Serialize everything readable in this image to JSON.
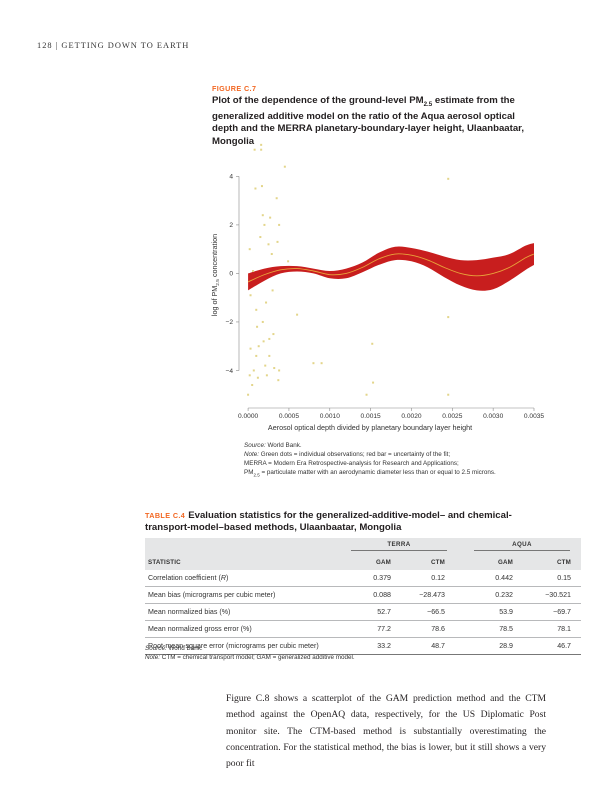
{
  "running_head": "128  |  GETTING DOWN TO EARTH",
  "figure": {
    "label": "FIGURE C.7",
    "title_part1": "Plot of the dependence of the ground-level PM",
    "title_sub": "2.5",
    "title_part2": " estimate from the generalized additive model on the ratio of the Aqua aerosol optical depth and the MERRA planetary-boundary-layer height, Ulaanbaatar, Mongolia",
    "source_label": "Source:",
    "source_text": " World Bank.",
    "note_label": "Note:",
    "note_line1": " Green dots = individual observations; red bar = uncertainty of the fit;",
    "note_line2": "MERRA = Modern Era Retrospective-analysis for Research and Applications;",
    "note_line3_pre": "PM",
    "note_line3_sub": "2.5",
    "note_line3_post": " = particulate matter with an aerodynamic diameter less than or equal to 2.5 microns."
  },
  "chart_data": {
    "type": "scatter",
    "xlabel": "Aerosol optical depth divided by planetary boundary layer height",
    "ylabel_pre": "log of PM",
    "ylabel_sub": "2.5",
    "ylabel_post": " concentration",
    "xlim": [
      -5e-05,
      0.0035
    ],
    "ylim": [
      -5.3,
      5.5
    ],
    "x_ticks": [
      0.0,
      0.0005,
      0.001,
      0.0015,
      0.002,
      0.0025,
      0.003,
      0.0035
    ],
    "x_tick_labels": [
      "0.0000",
      "0.0005",
      "0.0010",
      "0.0015",
      "0.0020",
      "0.0025",
      "0.0030",
      "0.0035"
    ],
    "y_ticks": [
      -4,
      -2,
      0,
      2,
      4
    ],
    "y_tick_labels": [
      "−4",
      "−2",
      "0",
      "2",
      "4"
    ],
    "grid": false,
    "colors": {
      "points": "#e3d58a",
      "band": "#c81e1e",
      "fit": "#e8a33a",
      "axis": "#888888"
    },
    "series": [
      {
        "type": "scatter",
        "points": [
          [
            0.0,
            -5.0
          ],
          [
            2e-05,
            -4.2
          ],
          [
            2e-05,
            1.0
          ],
          [
            3e-05,
            -3.1
          ],
          [
            3e-05,
            -0.9
          ],
          [
            5e-05,
            -4.6
          ],
          [
            6e-05,
            0.1
          ],
          [
            7e-05,
            -4.0
          ],
          [
            8e-05,
            5.1
          ],
          [
            9e-05,
            3.5
          ],
          [
            0.0001,
            -1.5
          ],
          [
            0.0001,
            -3.4
          ],
          [
            0.00011,
            -2.2
          ],
          [
            0.00012,
            -4.3
          ],
          [
            0.00013,
            -3.0
          ],
          [
            0.00015,
            1.5
          ],
          [
            0.00016,
            5.3
          ],
          [
            0.00016,
            5.1
          ],
          [
            0.00017,
            3.6
          ],
          [
            0.00018,
            2.4
          ],
          [
            0.00018,
            -2.0
          ],
          [
            0.00019,
            -2.8
          ],
          [
            0.0002,
            2.0
          ],
          [
            0.00021,
            -3.8
          ],
          [
            0.00022,
            -1.2
          ],
          [
            0.00023,
            -4.2
          ],
          [
            0.00025,
            1.2
          ],
          [
            0.00026,
            -3.4
          ],
          [
            0.00026,
            -2.7
          ],
          [
            0.00027,
            2.3
          ],
          [
            0.00029,
            0.8
          ],
          [
            0.0003,
            -0.7
          ],
          [
            0.00031,
            -2.5
          ],
          [
            0.00032,
            -3.9
          ],
          [
            0.00035,
            3.1
          ],
          [
            0.00036,
            1.3
          ],
          [
            0.00037,
            -4.4
          ],
          [
            0.00038,
            2.0
          ],
          [
            0.00038,
            -4.0
          ],
          [
            0.00045,
            4.4
          ],
          [
            0.00049,
            0.5
          ],
          [
            0.0006,
            -1.7
          ],
          [
            0.0008,
            -3.7
          ],
          [
            0.0009,
            -3.7
          ],
          [
            0.00145,
            -5.0
          ],
          [
            0.00152,
            -2.9
          ],
          [
            0.00153,
            -4.5
          ],
          [
            0.00245,
            3.9
          ],
          [
            0.00245,
            -1.8
          ],
          [
            0.00245,
            -5.0
          ]
        ]
      },
      {
        "type": "line",
        "name": "",
        "x": [
          0.0,
          0.0002,
          0.0004,
          0.0006,
          0.0008,
          0.001,
          0.0012,
          0.0014,
          0.0016,
          0.0018,
          0.002,
          0.0022,
          0.0024,
          0.0026,
          0.0028,
          0.003,
          0.0032,
          0.0034,
          0.0035
        ],
        "y": [
          -0.35,
          -0.05,
          0.15,
          0.2,
          0.1,
          -0.05,
          0.0,
          0.25,
          0.6,
          0.8,
          0.75,
          0.55,
          0.25,
          0.0,
          -0.1,
          0.0,
          0.25,
          0.65,
          0.8
        ],
        "lower": [
          -0.7,
          -0.3,
          0.0,
          0.08,
          0.0,
          -0.2,
          -0.2,
          0.05,
          0.35,
          0.55,
          0.5,
          0.25,
          -0.15,
          -0.5,
          -0.7,
          -0.65,
          -0.3,
          0.15,
          0.35
        ],
        "upper": [
          0.0,
          0.2,
          0.3,
          0.3,
          0.2,
          0.1,
          0.2,
          0.45,
          0.85,
          1.1,
          1.05,
          0.9,
          0.7,
          0.55,
          0.55,
          0.65,
          0.8,
          1.15,
          1.25
        ]
      }
    ]
  },
  "table": {
    "label": "TABLE C.4",
    "title": "Evaluation statistics for the generalized-additive-model– and chemical-transport-model–based methods, Ulaanbaatar, Mongolia",
    "group_terra": "TERRA",
    "group_aqua": "AQUA",
    "col_statistic": "STATISTIC",
    "col_gam": "GAM",
    "col_ctm": "CTM",
    "rows": [
      {
        "stat_pre": "Correlation coefficient (",
        "stat_it": "R",
        "stat_post": ")",
        "terra_gam": "0.379",
        "terra_ctm": "0.12",
        "aqua_gam": "0.442",
        "aqua_ctm": "0.15"
      },
      {
        "stat_pre": "Mean bias (micrograms per cubic meter)",
        "stat_it": "",
        "stat_post": "",
        "terra_gam": "0.088",
        "terra_ctm": "−28.473",
        "aqua_gam": "0.232",
        "aqua_ctm": "−30.521"
      },
      {
        "stat_pre": "Mean normalized bias (%)",
        "stat_it": "",
        "stat_post": "",
        "terra_gam": "52.7",
        "terra_ctm": "−66.5",
        "aqua_gam": "53.9",
        "aqua_ctm": "−69.7"
      },
      {
        "stat_pre": "Mean normalized gross error (%)",
        "stat_it": "",
        "stat_post": "",
        "terra_gam": "77.2",
        "terra_ctm": "78.6",
        "aqua_gam": "78.5",
        "aqua_ctm": "78.1"
      },
      {
        "stat_pre": "Root-mean-square error (micrograms per cubic meter)",
        "stat_it": "",
        "stat_post": "",
        "terra_gam": "33.2",
        "terra_ctm": "48.7",
        "aqua_gam": "28.9",
        "aqua_ctm": "46.7"
      }
    ],
    "source_label": "Source:",
    "source_text": " World Bank.",
    "note_label": "Note:",
    "note_text": " CTM = chemical transport model; GAM = generalized additive model."
  },
  "body_text": "Figure C.8 shows a scatterplot of the GAM prediction method and the CTM method against the OpenAQ data, respectively, for the US Diplomatic Post monitor site. The CTM-based method is substantially overestimating the concentration. For the statistical method, the bias is lower, but it still shows a very poor fit"
}
